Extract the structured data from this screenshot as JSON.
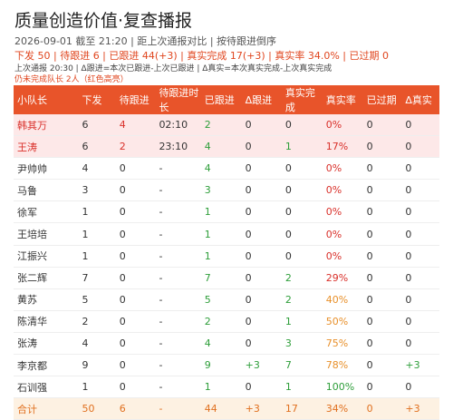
{
  "header": {
    "title": "质量创造价值·复查播报",
    "subtitle": "2026-09-01 截至 21:20 | 距上次通报对比 | 按待跟进倒序",
    "summary": "下发 50 | 待跟进 6 | 已跟进 44(+3) | 真实完成 17(+3) | 真实率 34.0% | 已过期 0",
    "note": "上次通报 20:30 | Δ跟进=本次已跟进-上次已跟进 | Δ真实=本次真实完成-上次真实完成",
    "warning": "仍未完成队长 2人（红色高亮）"
  },
  "table": {
    "columns": [
      "小队长",
      "下发",
      "待跟进",
      "待跟进时长",
      "已跟进",
      "Δ跟进",
      "真实完成",
      "真实率",
      "已过期",
      "Δ真实"
    ],
    "rows": [
      [
        "韩其万",
        "6",
        "4",
        "02:10",
        "2",
        "0",
        "0",
        "0%",
        "0",
        "0"
      ],
      [
        "王涛",
        "6",
        "2",
        "23:10",
        "4",
        "0",
        "1",
        "17%",
        "0",
        "0"
      ],
      [
        "尹帅帅",
        "4",
        "0",
        "-",
        "4",
        "0",
        "0",
        "0%",
        "0",
        "0"
      ],
      [
        "马鲁",
        "3",
        "0",
        "-",
        "3",
        "0",
        "0",
        "0%",
        "0",
        "0"
      ],
      [
        "徐军",
        "1",
        "0",
        "-",
        "1",
        "0",
        "0",
        "0%",
        "0",
        "0"
      ],
      [
        "王培培",
        "1",
        "0",
        "-",
        "1",
        "0",
        "0",
        "0%",
        "0",
        "0"
      ],
      [
        "江振兴",
        "1",
        "0",
        "-",
        "1",
        "0",
        "0",
        "0%",
        "0",
        "0"
      ],
      [
        "张二辉",
        "7",
        "0",
        "-",
        "7",
        "0",
        "2",
        "29%",
        "0",
        "0"
      ],
      [
        "黄苏",
        "5",
        "0",
        "-",
        "5",
        "0",
        "2",
        "40%",
        "0",
        "0"
      ],
      [
        "陈清华",
        "2",
        "0",
        "-",
        "2",
        "0",
        "1",
        "50%",
        "0",
        "0"
      ],
      [
        "张涛",
        "4",
        "0",
        "-",
        "4",
        "0",
        "3",
        "75%",
        "0",
        "0"
      ],
      [
        "李京都",
        "9",
        "0",
        "-",
        "9",
        "+3",
        "7",
        "78%",
        "0",
        "+3"
      ],
      [
        "石训强",
        "1",
        "0",
        "-",
        "1",
        "0",
        "1",
        "100%",
        "0",
        "0"
      ]
    ],
    "total": [
      "合计",
      "50",
      "6",
      "-",
      "44",
      "+3",
      "17",
      "34%",
      "0",
      "+3"
    ]
  }
}
